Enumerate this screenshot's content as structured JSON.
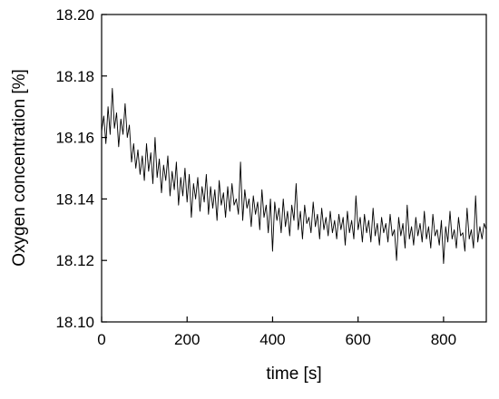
{
  "chart_data": {
    "type": "line",
    "title": "",
    "xlabel": "time [s]",
    "ylabel": "Oxygen concentration [%]",
    "xlim": [
      0,
      900
    ],
    "ylim": [
      18.1,
      18.2
    ],
    "grid": false,
    "x_ticks": [
      0,
      200,
      400,
      600,
      800
    ],
    "x_tick_labels": [
      "0",
      "200",
      "400",
      "600",
      "800"
    ],
    "y_ticks": [
      18.1,
      18.12,
      18.14,
      18.16,
      18.18,
      18.2
    ],
    "y_tick_labels": [
      "18.10",
      "18.12",
      "18.14",
      "18.16",
      "18.18",
      "18.20"
    ],
    "line_color": "#000000",
    "series": [
      {
        "x": [
          0,
          5,
          10,
          15,
          20,
          25,
          30,
          35,
          40,
          45,
          50,
          55,
          60,
          65,
          70,
          75,
          80,
          85,
          90,
          95,
          100,
          105,
          110,
          115,
          120,
          125,
          130,
          135,
          140,
          145,
          150,
          155,
          160,
          165,
          170,
          175,
          180,
          185,
          190,
          195,
          200,
          205,
          210,
          215,
          220,
          225,
          230,
          235,
          240,
          245,
          250,
          255,
          260,
          265,
          270,
          275,
          280,
          285,
          290,
          295,
          300,
          305,
          310,
          315,
          320,
          325,
          330,
          335,
          340,
          345,
          350,
          355,
          360,
          365,
          370,
          375,
          380,
          385,
          390,
          395,
          400,
          405,
          410,
          415,
          420,
          425,
          430,
          435,
          440,
          445,
          450,
          455,
          460,
          465,
          470,
          475,
          480,
          485,
          490,
          495,
          500,
          505,
          510,
          515,
          520,
          525,
          530,
          535,
          540,
          545,
          550,
          555,
          560,
          565,
          570,
          575,
          580,
          585,
          590,
          595,
          600,
          605,
          610,
          615,
          620,
          625,
          630,
          635,
          640,
          645,
          650,
          655,
          660,
          665,
          670,
          675,
          680,
          685,
          690,
          695,
          700,
          705,
          710,
          715,
          720,
          725,
          730,
          735,
          740,
          745,
          750,
          755,
          760,
          765,
          770,
          775,
          780,
          785,
          790,
          795,
          800,
          805,
          810,
          815,
          820,
          825,
          830,
          835,
          840,
          845,
          850,
          855,
          860,
          865,
          870,
          875,
          880,
          885,
          890,
          895,
          900
        ],
        "y": [
          18.162,
          18.167,
          18.158,
          18.17,
          18.161,
          18.176,
          18.163,
          18.168,
          18.157,
          18.166,
          18.161,
          18.171,
          18.16,
          18.164,
          18.152,
          18.158,
          18.15,
          18.156,
          18.148,
          18.154,
          18.146,
          18.158,
          18.149,
          18.155,
          18.145,
          18.16,
          18.147,
          18.153,
          18.142,
          18.151,
          18.146,
          18.154,
          18.141,
          18.149,
          18.143,
          18.152,
          18.138,
          18.147,
          18.141,
          18.15,
          18.139,
          18.148,
          18.134,
          18.145,
          18.14,
          18.147,
          18.136,
          18.144,
          18.139,
          18.148,
          18.135,
          18.144,
          18.137,
          18.143,
          18.133,
          18.146,
          18.138,
          18.142,
          18.134,
          18.144,
          18.136,
          18.145,
          18.138,
          18.14,
          18.135,
          18.152,
          18.133,
          18.143,
          18.137,
          18.14,
          18.131,
          18.141,
          18.135,
          18.139,
          18.13,
          18.143,
          18.134,
          18.138,
          18.129,
          18.14,
          18.123,
          18.139,
          18.133,
          18.137,
          18.129,
          18.14,
          18.131,
          18.136,
          18.128,
          18.138,
          18.133,
          18.145,
          18.13,
          18.136,
          18.127,
          18.138,
          18.132,
          18.134,
          18.129,
          18.139,
          18.131,
          18.135,
          18.127,
          18.137,
          18.13,
          18.134,
          18.128,
          18.136,
          18.129,
          18.133,
          18.127,
          18.135,
          18.13,
          18.134,
          18.125,
          18.136,
          18.129,
          18.133,
          18.127,
          18.141,
          18.13,
          18.134,
          18.126,
          18.135,
          18.129,
          18.133,
          18.126,
          18.137,
          18.128,
          18.132,
          18.125,
          18.134,
          18.129,
          18.132,
          18.126,
          18.135,
          18.128,
          18.13,
          18.12,
          18.134,
          18.128,
          18.132,
          18.124,
          18.138,
          18.127,
          18.131,
          18.125,
          18.134,
          18.128,
          18.132,
          18.126,
          18.136,
          18.127,
          18.131,
          18.124,
          18.135,
          18.128,
          18.13,
          18.125,
          18.133,
          18.119,
          18.131,
          18.126,
          18.136,
          18.127,
          18.13,
          18.124,
          18.134,
          18.128,
          18.129,
          18.123,
          18.137,
          18.127,
          18.13,
          18.124,
          18.141,
          18.126,
          18.131,
          18.127,
          18.132,
          18.13
        ]
      }
    ]
  }
}
